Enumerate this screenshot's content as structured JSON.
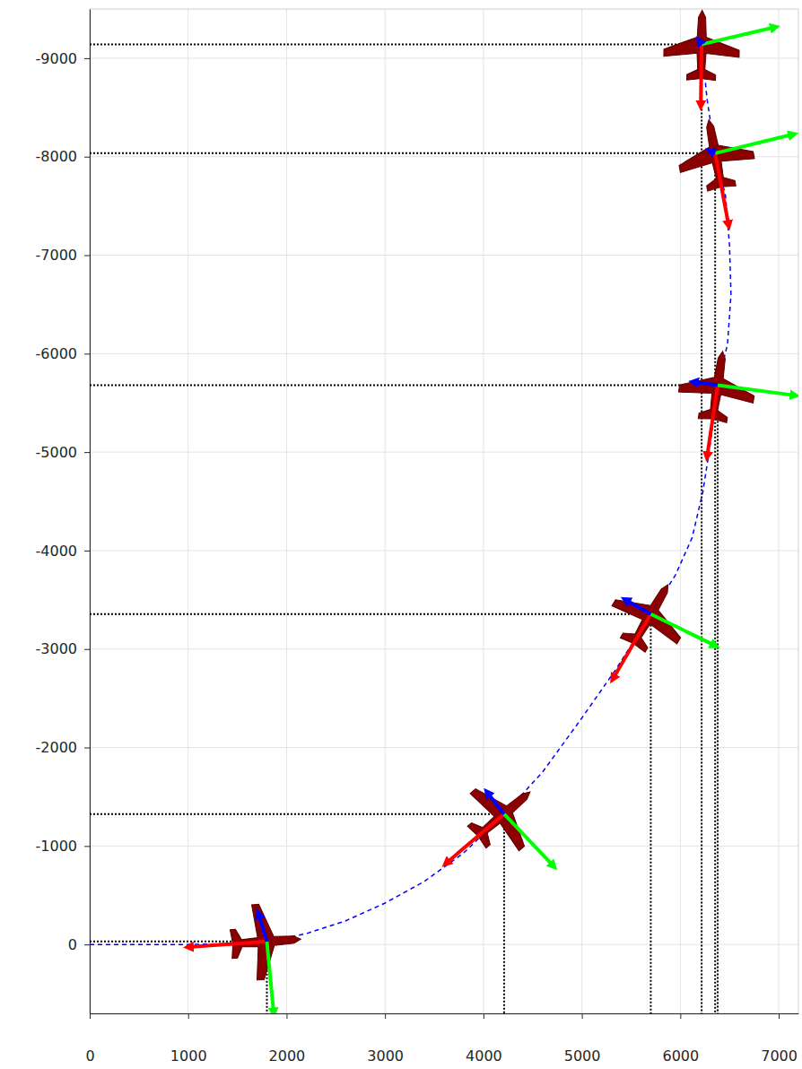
{
  "chart_data": {
    "type": "line",
    "xlim": [
      0,
      7200
    ],
    "ylim": [
      700,
      -9500
    ],
    "xticks": [
      0,
      1000,
      2000,
      3000,
      4000,
      5000,
      6000,
      7000
    ],
    "yticks": [
      0,
      -1000,
      -2000,
      -3000,
      -4000,
      -5000,
      -6000,
      -7000,
      -8000,
      -9000
    ],
    "grid": true,
    "series": [
      {
        "color": "#0000ff",
        "line_style": "dashed",
        "x": [
          0,
          500,
          1000,
          1500,
          1800,
          2200,
          2600,
          3000,
          3400,
          3800,
          4210,
          4600,
          5000,
          5350,
          5700,
          5950,
          6120,
          6230,
          6300,
          6380,
          6480,
          6515,
          6500,
          6460,
          6354,
          6270,
          6217
        ],
        "values": [
          0,
          0,
          0,
          -10,
          -30,
          -110,
          -240,
          -420,
          -640,
          -930,
          -1325,
          -1750,
          -2300,
          -2800,
          -3355,
          -3750,
          -4130,
          -4600,
          -5050,
          -5680,
          -6100,
          -6600,
          -7100,
          -7600,
          -8035,
          -8600,
          -9141
        ]
      }
    ],
    "aircraft": {
      "color": "#8b0000",
      "x": [
        1800,
        4210,
        5700,
        6380,
        6354,
        6217
      ],
      "values": [
        -30,
        -1325,
        -3355,
        -5680,
        -8035,
        -9141
      ]
    },
    "vectors": [
      {
        "color": "#ff0000",
        "x": [
          1003,
          3619,
          5315,
          6272,
          6491,
          6208
        ],
        "values": [
          27,
          -823,
          -2697,
          -4954,
          -7303,
          -8519
        ]
      },
      {
        "color": "#00ff00",
        "x": [
          1869,
          4713,
          6354,
          7165,
          7147,
          6964
        ],
        "values": [
          695,
          -795,
          -3035,
          -5576,
          -8227,
          -9315
        ]
      },
      {
        "color": "#0000ff",
        "x": [
          1714,
          4038,
          5442,
          6135,
          6300,
          6190
        ],
        "values": [
          -311,
          -1545,
          -3501,
          -5713,
          -8060,
          -9180
        ]
      }
    ]
  }
}
